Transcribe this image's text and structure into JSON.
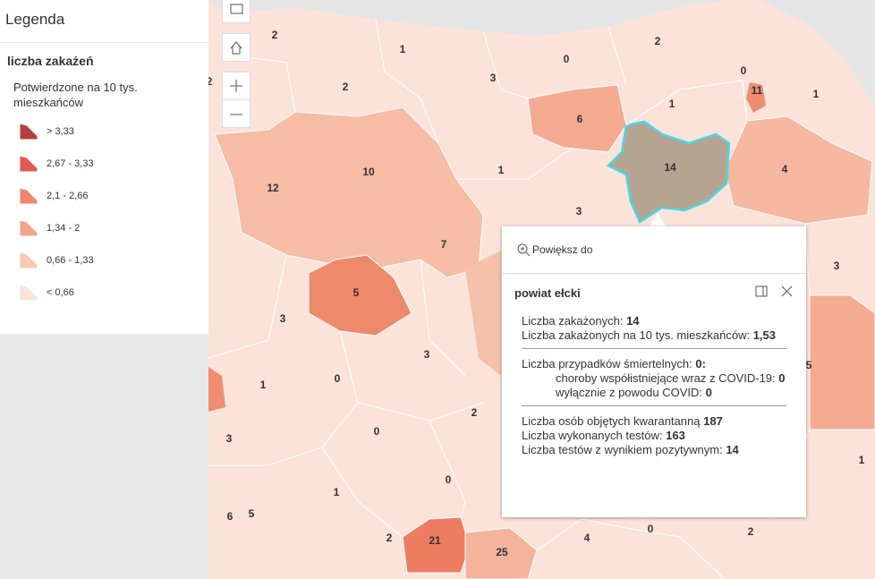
{
  "legend": {
    "title": "Legenda",
    "layer": "liczba zakażeń",
    "field": "Potwierdzone na 10 tys. mieszkańców",
    "items": [
      {
        "label": "> 3,33",
        "color": "#b5403f"
      },
      {
        "label": "2,67 - 3,33",
        "color": "#e05a50"
      },
      {
        "label": "2,1 - 2,66",
        "color": "#f0856a"
      },
      {
        "label": "1,34 - 2",
        "color": "#f4a589"
      },
      {
        "label": "0,66 - 1,33",
        "color": "#f8c8b3"
      },
      {
        "label": "< 0,66",
        "color": "#fbe3d9"
      }
    ]
  },
  "map": {
    "labels": [
      "2",
      "1",
      "2",
      "0",
      "3",
      "0",
      "11",
      "1",
      "2",
      "1",
      "6",
      "2",
      "14",
      "4",
      "1",
      "10",
      "12",
      "3",
      "7",
      "3",
      "5",
      "3",
      "3",
      "5",
      "0",
      "1",
      "2",
      "0",
      "3",
      "1",
      "0",
      "1",
      "6",
      "5",
      "21",
      "25",
      "4",
      "0",
      "2",
      "2"
    ]
  },
  "popup": {
    "zoom": "Powiększ do",
    "title": "powiat ełcki",
    "rows": [
      {
        "label": "Liczba zakażonych:",
        "value": 14
      },
      {
        "label": "Liczba zakażonych na 10 tys. mieszkańców:",
        "value": "1,53"
      },
      {
        "label": "Liczba przypadków śmiertelnych:",
        "value": "0:"
      },
      {
        "label": "choroby współistniejące wraz z COVID-19:",
        "value": 0
      },
      {
        "label": "wyłącznie z powodu COVID:",
        "value": 0
      },
      {
        "label": "Liczba osób objętych kwarantanną",
        "value": 187
      },
      {
        "label": "Liczba wykonanych testów:",
        "value": 163
      },
      {
        "label": "Liczba testów z wynikiem pozytywnym:",
        "value": 14
      }
    ]
  }
}
